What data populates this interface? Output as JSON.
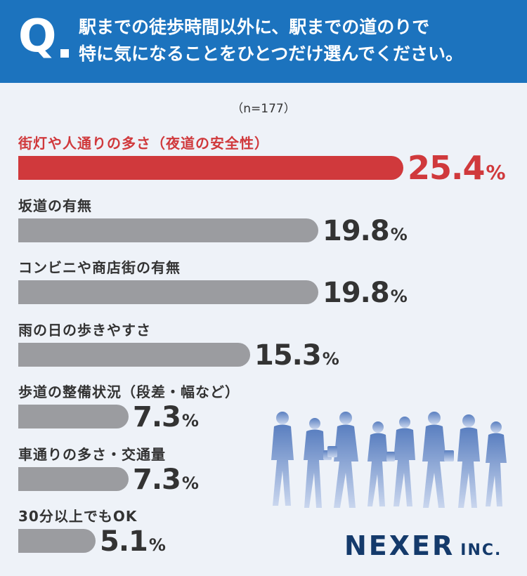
{
  "header": {
    "q_mark": "Q",
    "question_line1": "駅までの徒歩時間以外に、駅までの道のりで",
    "question_line2": "特に気になることをひとつだけ選んでください。"
  },
  "sample_size": "（n=177）",
  "colors": {
    "header_bg": "#1c73be",
    "highlight": "#d0393c",
    "bar": "#9b9ca0",
    "background": "#eef2f8",
    "brand": "#143a6b"
  },
  "chart_data": {
    "type": "bar",
    "orientation": "horizontal",
    "unit": "%",
    "xlim": [
      0,
      25.4
    ],
    "categories": [
      "街灯や人通りの多さ（夜道の安全性）",
      "坂道の有無",
      "コンビニや商店街の有無",
      "雨の日の歩きやすさ",
      "歩道の整備状況（段差・幅など）",
      "車通りの多さ・交通量",
      "30分以上でもOK"
    ],
    "values": [
      25.4,
      19.8,
      19.8,
      15.3,
      7.3,
      7.3,
      5.1
    ],
    "value_labels": [
      "25.4",
      "19.8",
      "19.8",
      "15.3",
      "7.3",
      "7.3",
      "5.1"
    ],
    "highlight_index": 0
  },
  "decoration": {
    "illustration": "walking-people-silhouettes"
  },
  "brand": {
    "name": "NEXER",
    "suffix": "INC."
  }
}
